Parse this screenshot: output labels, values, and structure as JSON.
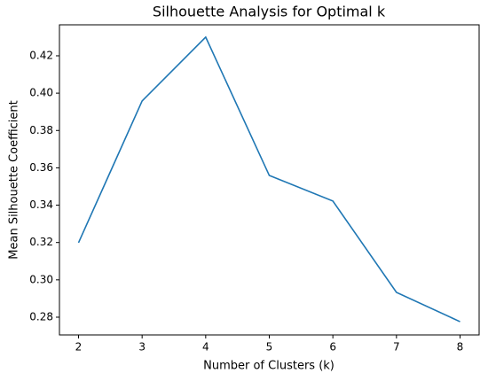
{
  "chart_data": {
    "type": "line",
    "title": "Silhouette Analysis for Optimal k",
    "x_label": "Number of Clusters (k)",
    "y_label": "Mean Silhouette Coefficient",
    "x": [
      2,
      3,
      4,
      5,
      6,
      7,
      8
    ],
    "series": [
      {
        "name": "Mean Silhouette Coefficient",
        "color": "#1f77b4",
        "values": [
          0.3199,
          0.3958,
          0.43,
          0.3559,
          0.3422,
          0.2933,
          0.2776
        ]
      }
    ],
    "xlim": [
      1.7,
      8.3
    ],
    "xticks": [
      2,
      3,
      4,
      5,
      6,
      7,
      8
    ],
    "ylim": [
      0.2705,
      0.4366
    ],
    "yticks": [
      0.28,
      {
        "value": 0.3,
        "label": "0.30"
      },
      0.32,
      0.34,
      0.36,
      0.38,
      {
        "value": 0.4,
        "label": "0.40"
      },
      0.42
    ],
    "grid": false
  }
}
